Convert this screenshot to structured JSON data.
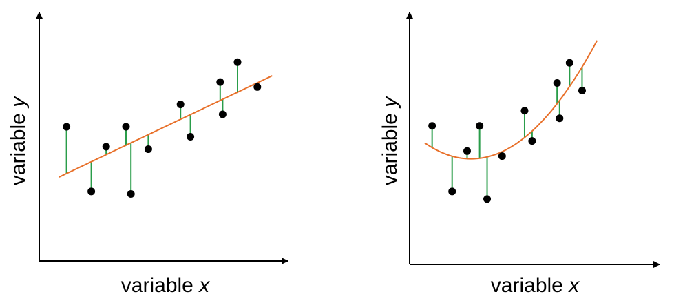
{
  "panels": [
    {
      "id": "linear",
      "xlabel": {
        "word": "variable",
        "symbol": "x"
      },
      "ylabel": {
        "word": "variable",
        "symbol": "y"
      },
      "fit": "linear",
      "points": [
        [
          0.11,
          0.54
        ],
        [
          0.21,
          0.28
        ],
        [
          0.27,
          0.46
        ],
        [
          0.35,
          0.54
        ],
        [
          0.37,
          0.27
        ],
        [
          0.44,
          0.45
        ],
        [
          0.57,
          0.63
        ],
        [
          0.61,
          0.5
        ],
        [
          0.73,
          0.72
        ],
        [
          0.74,
          0.59
        ],
        [
          0.8,
          0.8
        ],
        [
          0.88,
          0.7
        ]
      ]
    },
    {
      "id": "quadratic",
      "xlabel": {
        "word": "variable",
        "symbol": "x"
      },
      "ylabel": {
        "word": "variable",
        "symbol": "y"
      },
      "fit": "quadratic",
      "points": [
        [
          0.09,
          0.55
        ],
        [
          0.17,
          0.29
        ],
        [
          0.23,
          0.45
        ],
        [
          0.28,
          0.55
        ],
        [
          0.31,
          0.26
        ],
        [
          0.37,
          0.43
        ],
        [
          0.46,
          0.61
        ],
        [
          0.49,
          0.49
        ],
        [
          0.59,
          0.72
        ],
        [
          0.6,
          0.58
        ],
        [
          0.64,
          0.8
        ],
        [
          0.69,
          0.69
        ]
      ]
    }
  ],
  "colors": {
    "fit_line": "#e8702a",
    "residual": "#2a9d4a",
    "point": "#000000",
    "axis": "#000000"
  }
}
